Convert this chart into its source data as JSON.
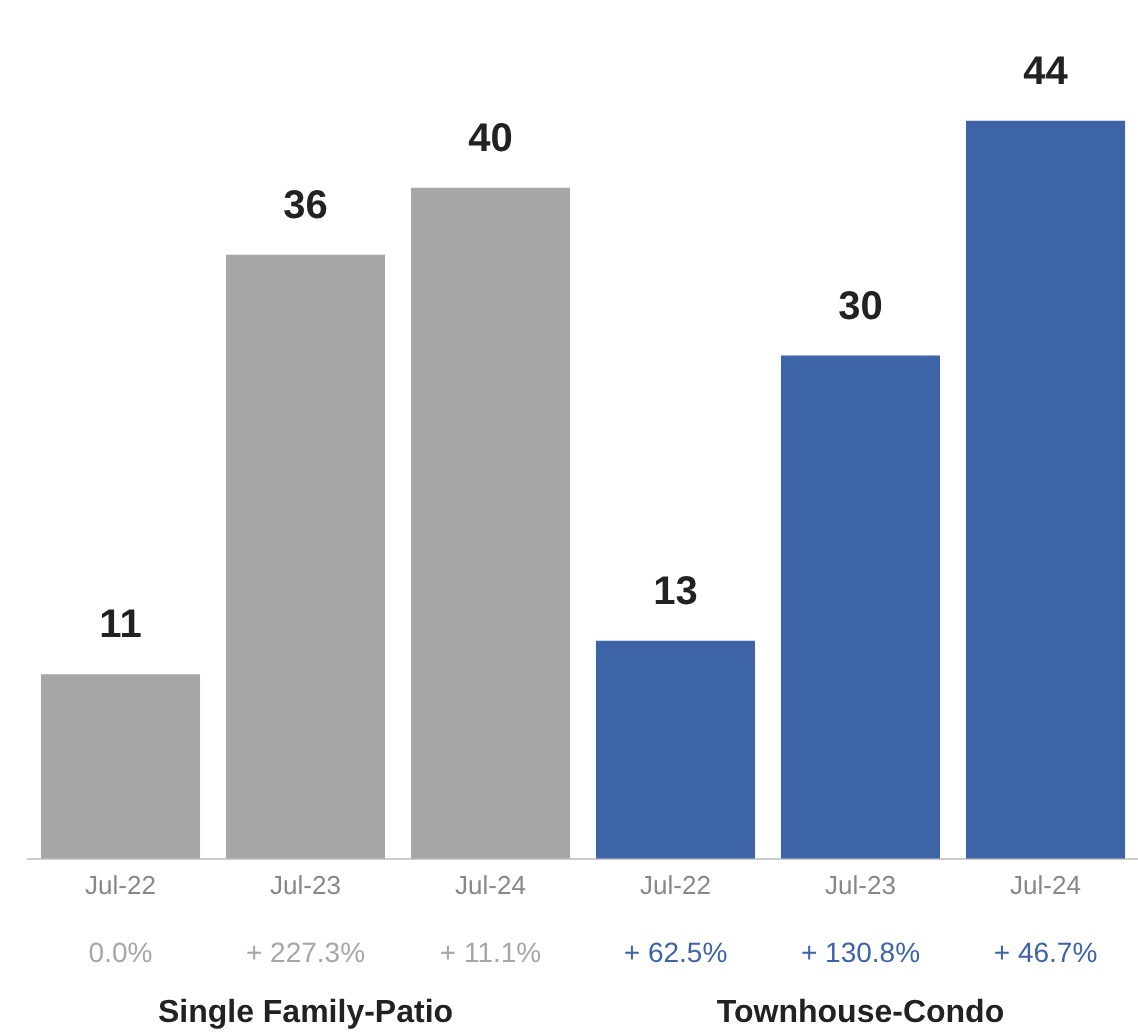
{
  "chart_data": {
    "type": "bar",
    "categories": [
      "Jul-22",
      "Jul-23",
      "Jul-24",
      "Jul-22",
      "Jul-23",
      "Jul-24"
    ],
    "values": [
      11,
      36,
      40,
      13,
      30,
      44
    ],
    "colors": [
      "#a6a6a6",
      "#a6a6a6",
      "#a6a6a6",
      "#3d64a6",
      "#3d64a6",
      "#3d64a6"
    ],
    "data_labels": true,
    "relative": false,
    "annotations": [
      "0.0%",
      "+ 227.3%",
      "+ 11.1%",
      "+ 62.5%",
      "+ 130.8%",
      "+ 46.7%",
      "Single Family-Patio",
      "Townhouse-Condo"
    ]
  }
}
